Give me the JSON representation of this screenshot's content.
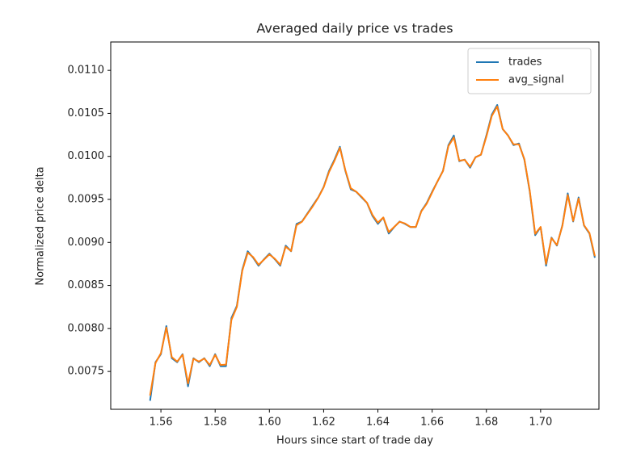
{
  "chart_data": {
    "type": "line",
    "title": "Averaged daily price vs trades",
    "xlabel": "Hours since start of trade day",
    "ylabel": "Normalized price delta",
    "x": [
      1.556,
      1.558,
      1.56,
      1.562,
      1.564,
      1.566,
      1.568,
      1.57,
      1.572,
      1.574,
      1.576,
      1.578,
      1.58,
      1.582,
      1.584,
      1.586,
      1.588,
      1.59,
      1.592,
      1.594,
      1.596,
      1.598,
      1.6,
      1.602,
      1.604,
      1.606,
      1.608,
      1.61,
      1.612,
      1.614,
      1.616,
      1.618,
      1.62,
      1.622,
      1.624,
      1.626,
      1.628,
      1.63,
      1.632,
      1.634,
      1.636,
      1.638,
      1.64,
      1.642,
      1.644,
      1.646,
      1.648,
      1.65,
      1.652,
      1.654,
      1.656,
      1.658,
      1.66,
      1.662,
      1.664,
      1.666,
      1.668,
      1.67,
      1.672,
      1.674,
      1.676,
      1.678,
      1.68,
      1.682,
      1.684,
      1.686,
      1.688,
      1.69,
      1.692,
      1.694,
      1.696,
      1.698,
      1.7,
      1.702,
      1.704,
      1.706,
      1.708,
      1.71,
      1.712,
      1.714,
      1.716,
      1.718,
      1.72
    ],
    "series": [
      {
        "name": "trades",
        "color": "#1f77b4",
        "values": [
          0.007159,
          0.007607,
          0.007701,
          0.008028,
          0.007654,
          0.007607,
          0.007701,
          0.007327,
          0.007654,
          0.007607,
          0.007654,
          0.007561,
          0.007701,
          0.007561,
          0.007561,
          0.008121,
          0.008262,
          0.008682,
          0.008897,
          0.008822,
          0.008729,
          0.008804,
          0.008869,
          0.008804,
          0.008729,
          0.008963,
          0.008897,
          0.009215,
          0.009243,
          0.009336,
          0.00943,
          0.009523,
          0.009645,
          0.009832,
          0.009963,
          0.010112,
          0.009832,
          0.009617,
          0.009589,
          0.009523,
          0.009458,
          0.009308,
          0.009215,
          0.00929,
          0.009103,
          0.009178,
          0.009243,
          0.009215,
          0.009178,
          0.009178,
          0.009364,
          0.009458,
          0.009589,
          0.00971,
          0.009832,
          0.010131,
          0.010243,
          0.009944,
          0.009963,
          0.009869,
          0.009991,
          0.010019,
          0.010243,
          0.010486,
          0.010598,
          0.010318,
          0.010243,
          0.010131,
          0.01015,
          0.009963,
          0.009589,
          0.009084,
          0.009178,
          0.008729,
          0.009056,
          0.008963,
          0.009196,
          0.00957,
          0.009243,
          0.009523,
          0.009196,
          0.009103,
          0.008822
        ]
      },
      {
        "name": "avg_signal",
        "color": "#ff7f0e",
        "values": [
          0.00722,
          0.007598,
          0.007712,
          0.00801,
          0.007668,
          0.007615,
          0.007695,
          0.00736,
          0.007648,
          0.007615,
          0.00765,
          0.007575,
          0.007692,
          0.007575,
          0.00758,
          0.0081,
          0.00825,
          0.00867,
          0.00888,
          0.00883,
          0.00874,
          0.0088,
          0.00886,
          0.00881,
          0.00874,
          0.00895,
          0.0089,
          0.0092,
          0.00924,
          0.00933,
          0.00942,
          0.00952,
          0.00964,
          0.00982,
          0.00995,
          0.0101,
          0.00984,
          0.00963,
          0.00959,
          0.00953,
          0.00946,
          0.00932,
          0.00923,
          0.00929,
          0.00912,
          0.00918,
          0.00924,
          0.00922,
          0.00918,
          0.00918,
          0.00936,
          0.00945,
          0.00958,
          0.00971,
          0.00983,
          0.01012,
          0.01022,
          0.00995,
          0.00996,
          0.00988,
          0.00999,
          0.01002,
          0.01023,
          0.01047,
          0.01058,
          0.01032,
          0.01024,
          0.01014,
          0.01014,
          0.00997,
          0.0096,
          0.0091,
          0.00918,
          0.00875,
          0.00905,
          0.00897,
          0.00919,
          0.00955,
          0.00925,
          0.00951,
          0.0092,
          0.00911,
          0.00884
        ]
      }
    ],
    "xlim": [
      1.5415,
      1.7215
    ],
    "xticks": [
      1.56,
      1.58,
      {
        "value": 1.6,
        "label": "1.60"
      },
      1.62,
      1.64,
      1.66,
      1.68,
      {
        "value": 1.7,
        "label": "1.70"
      }
    ],
    "ylim": [
      0.00706,
      0.01133
    ],
    "yticks": [
      {
        "value": 0.0075,
        "label": "0.0075"
      },
      {
        "value": 0.008,
        "label": "0.0080"
      },
      0.0085,
      {
        "value": 0.009,
        "label": "0.0090"
      },
      0.0095,
      {
        "value": 0.01,
        "label": "0.0100"
      },
      0.0105,
      {
        "value": 0.011,
        "label": "0.0110"
      }
    ],
    "grid": false,
    "legend": "upper right"
  }
}
